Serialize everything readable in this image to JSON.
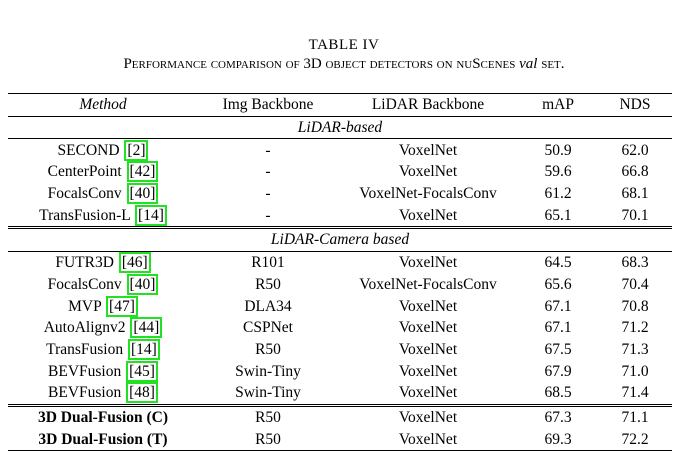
{
  "caption": {
    "label": "TABLE IV",
    "title_pre": "Performance comparison of 3D object detectors on nuScenes ",
    "title_em": "val",
    "title_post": " set."
  },
  "headers": {
    "method": "Method",
    "img_backbone": "Img Backbone",
    "lidar_backbone": "LiDAR Backbone",
    "map": "mAP",
    "nds": "NDS"
  },
  "groups": [
    {
      "title": "LiDAR-based",
      "rows": [
        {
          "method": "SECOND",
          "cite": "[2]",
          "img": "-",
          "lidar": "VoxelNet",
          "map": "50.9",
          "nds": "62.0"
        },
        {
          "method": "CenterPoint",
          "cite": "[42]",
          "img": "-",
          "lidar": "VoxelNet",
          "map": "59.6",
          "nds": "66.8"
        },
        {
          "method": "FocalsConv",
          "cite": "[40]",
          "img": "-",
          "lidar": "VoxelNet-FocalsConv",
          "map": "61.2",
          "nds": "68.1"
        },
        {
          "method": "TransFusion-L",
          "cite": "[14]",
          "img": "-",
          "lidar": "VoxelNet",
          "map": "65.1",
          "nds": "70.1"
        }
      ]
    },
    {
      "title": "LiDAR-Camera based",
      "rows": [
        {
          "method": "FUTR3D",
          "cite": "[46]",
          "img": "R101",
          "lidar": "VoxelNet",
          "map": "64.5",
          "nds": "68.3"
        },
        {
          "method": "FocalsConv",
          "cite": "[40]",
          "img": "R50",
          "lidar": "VoxelNet-FocalsConv",
          "map": "65.6",
          "nds": "70.4"
        },
        {
          "method": "MVP",
          "cite": "[47]",
          "img": "DLA34",
          "lidar": "VoxelNet",
          "map": "67.1",
          "nds": "70.8"
        },
        {
          "method": "AutoAlignv2",
          "cite": "[44]",
          "img": "CSPNet",
          "lidar": "VoxelNet",
          "map": "67.1",
          "nds": "71.2"
        },
        {
          "method": "TransFusion",
          "cite": "[14]",
          "img": "R50",
          "lidar": "VoxelNet",
          "map": "67.5",
          "nds": "71.3"
        },
        {
          "method": "BEVFusion",
          "cite": "[45]",
          "img": "Swin-Tiny",
          "lidar": "VoxelNet",
          "map": "67.9",
          "nds": "71.0"
        },
        {
          "method": "BEVFusion",
          "cite": "[48]",
          "img": "Swin-Tiny",
          "lidar": "VoxelNet",
          "map": "68.5",
          "nds": "71.4"
        }
      ]
    }
  ],
  "ours": [
    {
      "method": "3D Dual-Fusion (C)",
      "img": "R50",
      "lidar": "VoxelNet",
      "map": "67.3",
      "nds": "71.1",
      "map_bold": false,
      "nds_bold": false
    },
    {
      "method": "3D Dual-Fusion (T)",
      "img": "R50",
      "lidar": "VoxelNet",
      "map": "69.3",
      "nds": "72.2",
      "map_bold": true,
      "nds_bold": true
    }
  ],
  "colors": {
    "citation_box": "#22e022"
  }
}
